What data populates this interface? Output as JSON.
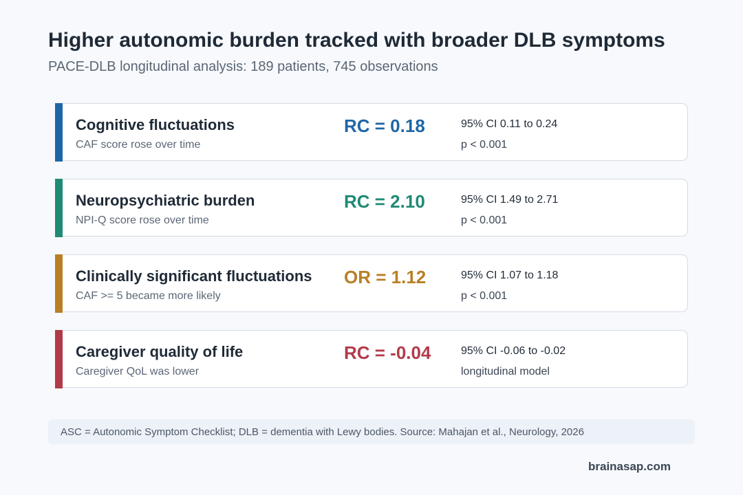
{
  "header": {
    "title": "Higher autonomic burden tracked with broader DLB symptoms",
    "subtitle": "PACE-DLB longitudinal analysis: 189 patients, 745 observations"
  },
  "cards": [
    {
      "title": "Cognitive fluctuations",
      "subtitle": "CAF score rose over time",
      "stat": "RC = 0.18",
      "ci": "95% CI 0.11 to 0.24",
      "note": "p < 0.001",
      "color": "#1f66a6"
    },
    {
      "title": "Neuropsychiatric burden",
      "subtitle": "NPI-Q score rose over time",
      "stat": "RC = 2.10",
      "ci": "95% CI 1.49 to 2.71",
      "note": "p < 0.001",
      "color": "#1f8a76"
    },
    {
      "title": "Clinically significant fluctuations",
      "subtitle": "CAF >= 5 became more likely",
      "stat": "OR = 1.12",
      "ci": "95% CI 1.07 to 1.18",
      "note": "p < 0.001",
      "color": "#b97f25"
    },
    {
      "title": "Caregiver quality of life",
      "subtitle": "Caregiver QoL was lower",
      "stat": "RC = -0.04",
      "ci": "95% CI -0.06 to -0.02",
      "note": "longitudinal model",
      "color": "#b23a4a"
    }
  ],
  "footnote": "ASC = Autonomic Symptom Checklist; DLB = dementia with Lewy bodies. Source: Mahajan et al., Neurology, 2026",
  "brand": "brainasap.com"
}
